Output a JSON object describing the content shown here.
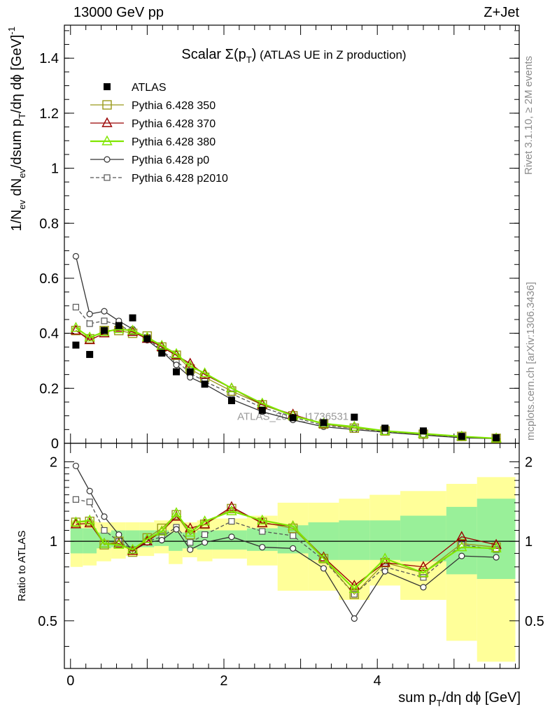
{
  "header": {
    "energy": "13000 GeV pp",
    "process": "Z+Jet"
  },
  "side_labels": {
    "rivet": "Rivet 3.1.10, ≥ 2M events",
    "mcplots": "mcplots.cern.ch [arXiv:1306.3436]"
  },
  "colors": {
    "data": "#000000",
    "p350": "#99991a",
    "p370": "#990000",
    "p380": "#80e600",
    "p0": "#333333",
    "p2010": "#555555",
    "band_green": "#99f099",
    "band_yellow": "#ffff99"
  },
  "chart_data": [
    {
      "type": "scatter",
      "title": "Scalar Σ(p_T) (ATLAS UE in Z production)",
      "xlabel": "sum p_T/dη dϕ [GeV]",
      "ylabel": "1/N_ev dN_ev/dsum p_T/dη dϕ [GeV]^-1",
      "ylim": [
        0,
        1.52
      ],
      "xlim": [
        -0.08,
        5.85
      ],
      "yticks": [
        "0",
        "0.2",
        "0.4",
        "0.6",
        "0.8",
        "1",
        "1.2",
        "1.4"
      ],
      "watermark": "ATLAS_2019_I1736531",
      "legend_position": "top-left",
      "x": [
        0.07,
        0.25,
        0.44,
        0.63,
        0.81,
        1.0,
        1.19,
        1.38,
        1.56,
        1.75,
        2.1,
        2.5,
        2.9,
        3.3,
        3.7,
        4.1,
        4.6,
        5.1,
        5.55
      ],
      "series": [
        {
          "name": "ATLAS",
          "key": "data",
          "marker": "filled-square",
          "line": "none",
          "values": [
            0.357,
            0.323,
            0.41,
            0.428,
            0.456,
            0.38,
            0.328,
            0.26,
            0.26,
            0.215,
            0.155,
            0.12,
            0.093,
            0.075,
            0.095,
            0.055,
            0.045,
            0.025,
            0.02
          ]
        },
        {
          "name": "Pythia 6.428 350",
          "key": "p350",
          "marker": "open-square",
          "line": "solid",
          "values": [
            0.41,
            0.38,
            0.41,
            0.41,
            0.4,
            0.39,
            0.35,
            0.32,
            0.27,
            0.24,
            0.19,
            0.14,
            0.1,
            0.07,
            0.055,
            0.045,
            0.033,
            0.025,
            0.018
          ]
        },
        {
          "name": "Pythia 6.428 370",
          "key": "p370",
          "marker": "open-triangle",
          "line": "solid",
          "values": [
            0.41,
            0.375,
            0.4,
            0.42,
            0.405,
            0.38,
            0.35,
            0.32,
            0.29,
            0.25,
            0.2,
            0.14,
            0.105,
            0.07,
            0.06,
            0.045,
            0.035,
            0.025,
            0.018
          ]
        },
        {
          "name": "Pythia 6.428 380",
          "key": "p380",
          "marker": "open-triangle",
          "line": "solid",
          "values": [
            0.42,
            0.385,
            0.405,
            0.415,
            0.41,
            0.385,
            0.355,
            0.325,
            0.28,
            0.255,
            0.2,
            0.145,
            0.1,
            0.072,
            0.06,
            0.045,
            0.035,
            0.025,
            0.018
          ]
        },
        {
          "name": "Pythia 6.428 p0",
          "key": "p0",
          "marker": "open-circle",
          "line": "solid",
          "values": [
            0.68,
            0.47,
            0.48,
            0.445,
            0.415,
            0.375,
            0.335,
            0.285,
            0.24,
            0.215,
            0.16,
            0.115,
            0.085,
            0.06,
            0.05,
            0.04,
            0.03,
            0.02,
            0.017
          ]
        },
        {
          "name": "Pythia 6.428 p2010",
          "key": "p2010",
          "marker": "open-square-small",
          "line": "dashed",
          "values": [
            0.495,
            0.435,
            0.445,
            0.43,
            0.405,
            0.385,
            0.335,
            0.3,
            0.255,
            0.225,
            0.18,
            0.13,
            0.095,
            0.065,
            0.055,
            0.042,
            0.032,
            0.023,
            0.018
          ]
        }
      ]
    },
    {
      "type": "scatter",
      "ylabel": "Ratio to ATLAS",
      "xlabel": "sum p_T/dη dϕ [GeV]",
      "ylog": true,
      "ylim": [
        0.33,
        2.35
      ],
      "xlim": [
        -0.08,
        5.85
      ],
      "yticks": [
        0.5,
        1,
        2
      ],
      "xticks": [
        0,
        2,
        4
      ],
      "reference_line": 1,
      "x": [
        0.07,
        0.25,
        0.44,
        0.63,
        0.81,
        1.0,
        1.19,
        1.38,
        1.56,
        1.75,
        2.1,
        2.5,
        2.9,
        3.3,
        3.7,
        4.1,
        4.6,
        5.1,
        5.55
      ],
      "bin_edges": [
        0.0,
        0.16,
        0.34,
        0.53,
        0.72,
        0.9,
        1.09,
        1.28,
        1.46,
        1.65,
        1.85,
        2.3,
        2.7,
        3.1,
        3.5,
        3.9,
        4.3,
        4.9,
        5.3,
        5.8
      ],
      "band_green": [
        [
          0.9,
          1.12
        ],
        [
          0.9,
          1.12
        ],
        [
          0.94,
          1.08
        ],
        [
          0.95,
          1.1
        ],
        [
          0.95,
          1.1
        ],
        [
          0.95,
          1.1
        ],
        [
          0.96,
          1.1
        ],
        [
          0.92,
          1.08
        ],
        [
          0.94,
          1.08
        ],
        [
          0.93,
          1.1
        ],
        [
          0.93,
          1.1
        ],
        [
          0.92,
          1.12
        ],
        [
          0.9,
          1.15
        ],
        [
          0.85,
          1.18
        ],
        [
          0.85,
          1.2
        ],
        [
          0.85,
          1.2
        ],
        [
          0.84,
          1.25
        ],
        [
          0.75,
          1.35
        ],
        [
          0.72,
          1.45
        ]
      ],
      "band_yellow": [
        [
          0.8,
          1.2
        ],
        [
          0.81,
          1.19
        ],
        [
          0.84,
          1.18
        ],
        [
          0.86,
          1.18
        ],
        [
          0.88,
          1.18
        ],
        [
          0.88,
          1.18
        ],
        [
          0.9,
          1.2
        ],
        [
          0.82,
          1.2
        ],
        [
          0.87,
          1.18
        ],
        [
          0.84,
          1.2
        ],
        [
          0.86,
          1.22
        ],
        [
          0.81,
          1.25
        ],
        [
          0.65,
          1.4
        ],
        [
          0.65,
          1.4
        ],
        [
          0.6,
          1.45
        ],
        [
          0.68,
          1.5
        ],
        [
          0.6,
          1.55
        ],
        [
          0.42,
          1.65
        ],
        [
          0.35,
          1.75
        ]
      ],
      "series": [
        {
          "name": "Pythia 6.428 350",
          "key": "p350",
          "values": [
            1.18,
            1.19,
            0.97,
            1.0,
            0.91,
            1.03,
            1.12,
            1.26,
            1.06,
            1.16,
            1.33,
            1.18,
            1.12,
            0.86,
            0.63,
            0.83,
            0.76,
            0.98,
            0.95
          ]
        },
        {
          "name": "Pythia 6.428 370",
          "key": "p370",
          "values": [
            1.16,
            1.17,
            0.98,
            0.98,
            0.92,
            1.0,
            1.09,
            1.24,
            1.12,
            1.16,
            1.35,
            1.17,
            1.14,
            0.87,
            0.68,
            0.83,
            0.8,
            1.04,
            0.97
          ]
        },
        {
          "name": "Pythia 6.428 380",
          "key": "p380",
          "values": [
            1.18,
            1.2,
            0.98,
            0.97,
            0.93,
            1.02,
            1.09,
            1.28,
            1.08,
            1.19,
            1.3,
            1.2,
            1.14,
            0.86,
            0.66,
            0.86,
            0.76,
            0.95,
            0.94
          ]
        },
        {
          "name": "Pythia 6.428 p0",
          "key": "p0",
          "values": [
            1.93,
            1.55,
            1.24,
            1.06,
            0.92,
            0.99,
            1.01,
            1.11,
            0.93,
            0.99,
            1.04,
            0.95,
            0.94,
            0.79,
            0.51,
            0.77,
            0.67,
            0.88,
            0.87
          ]
        },
        {
          "name": "Pythia 6.428 p2010",
          "key": "p2010",
          "values": [
            1.44,
            1.41,
            1.1,
            1.0,
            0.93,
            1.0,
            1.04,
            1.13,
            0.99,
            1.06,
            1.19,
            1.09,
            1.05,
            0.85,
            0.63,
            0.8,
            0.73,
            0.97,
            0.93
          ]
        }
      ]
    }
  ]
}
